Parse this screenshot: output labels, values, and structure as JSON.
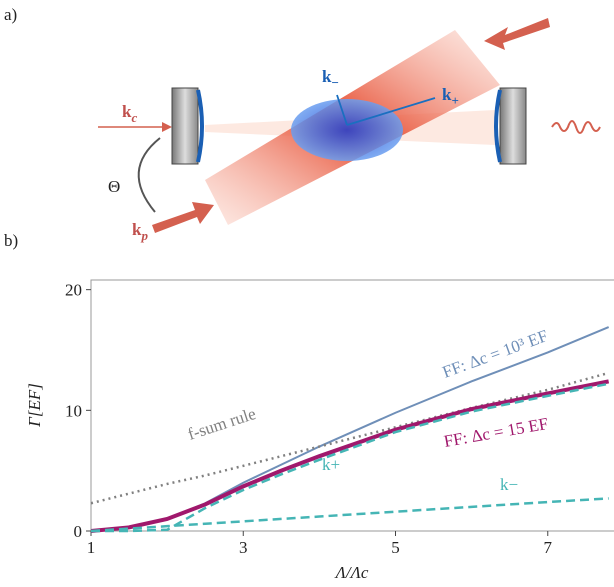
{
  "panel_a": {
    "label": "a)",
    "labels": [
      {
        "text": "k",
        "sub": "c"
      },
      {
        "text": "Θ"
      },
      {
        "text": "k",
        "sub": "p"
      },
      {
        "text": "k",
        "sub": "−"
      },
      {
        "text": "k",
        "sub": "+"
      }
    ]
  },
  "chart_data": {
    "type": "line",
    "panel_label": "b)",
    "x_label": "Λ/Λc",
    "y_label": "Γ[EF]",
    "x": [
      1,
      1.5,
      2,
      2.5,
      3,
      3.5,
      4,
      5,
      6,
      7,
      7.8
    ],
    "xlim": [
      1,
      7.87
    ],
    "ylim": [
      0,
      20.8
    ],
    "xticks": [
      1,
      3,
      5,
      7
    ],
    "yticks": [
      0,
      10,
      20
    ],
    "series": [
      {
        "name": "FF: Δc = 10³ EF",
        "color": "#6f8fb8",
        "style": "solid",
        "width": 2,
        "values": [
          0,
          0.3,
          1.0,
          2.3,
          4.0,
          5.5,
          7.0,
          9.8,
          12.4,
          14.8,
          16.9
        ]
      },
      {
        "name": "f-sum rule",
        "color": "#808080",
        "style": "dotted",
        "width": 2.5,
        "values": [
          2.3,
          3.1,
          3.9,
          4.6,
          5.4,
          6.2,
          7.0,
          8.6,
          10.2,
          11.7,
          13.1
        ]
      },
      {
        "name": "FF: Δc = 15 EF",
        "color": "#a0186c",
        "style": "solid",
        "width": 4,
        "values": [
          0,
          0.3,
          1.0,
          2.2,
          3.7,
          5.0,
          6.2,
          8.4,
          10.1,
          11.4,
          12.4
        ]
      },
      {
        "name": "k+",
        "color": "#45b5b5",
        "style": "dashed",
        "width": 2.5,
        "values": [
          0,
          0,
          0.1,
          1.9,
          3.4,
          4.7,
          5.9,
          8.2,
          9.9,
          11.2,
          12.2
        ]
      },
      {
        "name": "k−",
        "color": "#45b5b5",
        "style": "dashed",
        "width": 2.5,
        "values": [
          0,
          0.2,
          0.4,
          0.6,
          0.8,
          1.0,
          1.2,
          1.6,
          2.0,
          2.4,
          2.7
        ]
      }
    ]
  }
}
